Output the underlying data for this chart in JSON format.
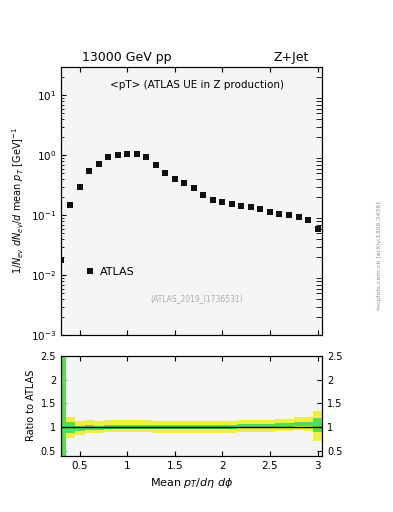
{
  "title_left": "13000 GeV pp",
  "title_right": "Z+Jet",
  "annotation": "<pT> (ATLAS UE in Z production)",
  "dataset_label": "(ATLAS_2019_I1736531)",
  "legend_label": "ATLAS",
  "watermark": "mcplots.cern.ch [arXiv:1306.3436]",
  "main_x": [
    0.3,
    0.4,
    0.5,
    0.6,
    0.7,
    0.8,
    0.9,
    1.0,
    1.1,
    1.2,
    1.3,
    1.4,
    1.5,
    1.6,
    1.7,
    1.8,
    1.9,
    2.0,
    2.1,
    2.2,
    2.3,
    2.4,
    2.5,
    2.6,
    2.7,
    2.8,
    2.9,
    3.0
  ],
  "main_y": [
    0.018,
    0.15,
    0.3,
    0.55,
    0.72,
    0.95,
    1.0,
    1.05,
    1.05,
    0.95,
    0.7,
    0.5,
    0.4,
    0.35,
    0.28,
    0.22,
    0.18,
    0.165,
    0.155,
    0.145,
    0.135,
    0.125,
    0.115,
    0.107,
    0.1,
    0.093,
    0.085,
    0.06
  ],
  "ratio_x": [
    0.3,
    0.4,
    0.5,
    0.6,
    0.7,
    0.8,
    0.9,
    1.0,
    1.1,
    1.2,
    1.3,
    1.4,
    1.5,
    1.6,
    1.7,
    1.8,
    1.9,
    2.0,
    2.1,
    2.2,
    2.3,
    2.4,
    2.5,
    2.6,
    2.7,
    2.8,
    2.9,
    3.0
  ],
  "ratio_green_lo": [
    0.38,
    0.88,
    0.91,
    0.94,
    0.94,
    0.97,
    0.97,
    0.97,
    0.97,
    0.97,
    0.97,
    0.96,
    0.96,
    0.96,
    0.97,
    0.96,
    0.96,
    0.97,
    0.97,
    0.99,
    0.98,
    0.98,
    0.99,
    1.01,
    1.01,
    1.03,
    1.03,
    0.9
  ],
  "ratio_green_hi": [
    2.5,
    1.1,
    1.02,
    1.04,
    1.03,
    1.05,
    1.05,
    1.05,
    1.05,
    1.05,
    1.05,
    1.04,
    1.04,
    1.04,
    1.05,
    1.04,
    1.04,
    1.05,
    1.05,
    1.07,
    1.06,
    1.06,
    1.07,
    1.09,
    1.09,
    1.11,
    1.11,
    1.2
  ],
  "ratio_yellow_lo": [
    0.38,
    0.78,
    0.84,
    0.88,
    0.87,
    0.9,
    0.9,
    0.9,
    0.9,
    0.9,
    0.88,
    0.87,
    0.87,
    0.87,
    0.88,
    0.87,
    0.87,
    0.88,
    0.88,
    0.9,
    0.89,
    0.89,
    0.9,
    0.92,
    0.92,
    0.94,
    0.92,
    0.7
  ],
  "ratio_yellow_hi": [
    2.5,
    1.22,
    1.12,
    1.14,
    1.13,
    1.16,
    1.16,
    1.16,
    1.16,
    1.15,
    1.13,
    1.12,
    1.12,
    1.12,
    1.13,
    1.12,
    1.12,
    1.13,
    1.13,
    1.15,
    1.14,
    1.14,
    1.15,
    1.18,
    1.18,
    1.22,
    1.22,
    1.35
  ],
  "xlim": [
    0.3,
    3.05
  ],
  "ylim_main_log": [
    0.001,
    30
  ],
  "ylim_ratio": [
    0.4,
    2.5
  ],
  "marker_color": "#111111",
  "green_color": "#55dd55",
  "yellow_color": "#eeee44",
  "bin_width": 0.1,
  "bg_color": "#f5f5f5"
}
